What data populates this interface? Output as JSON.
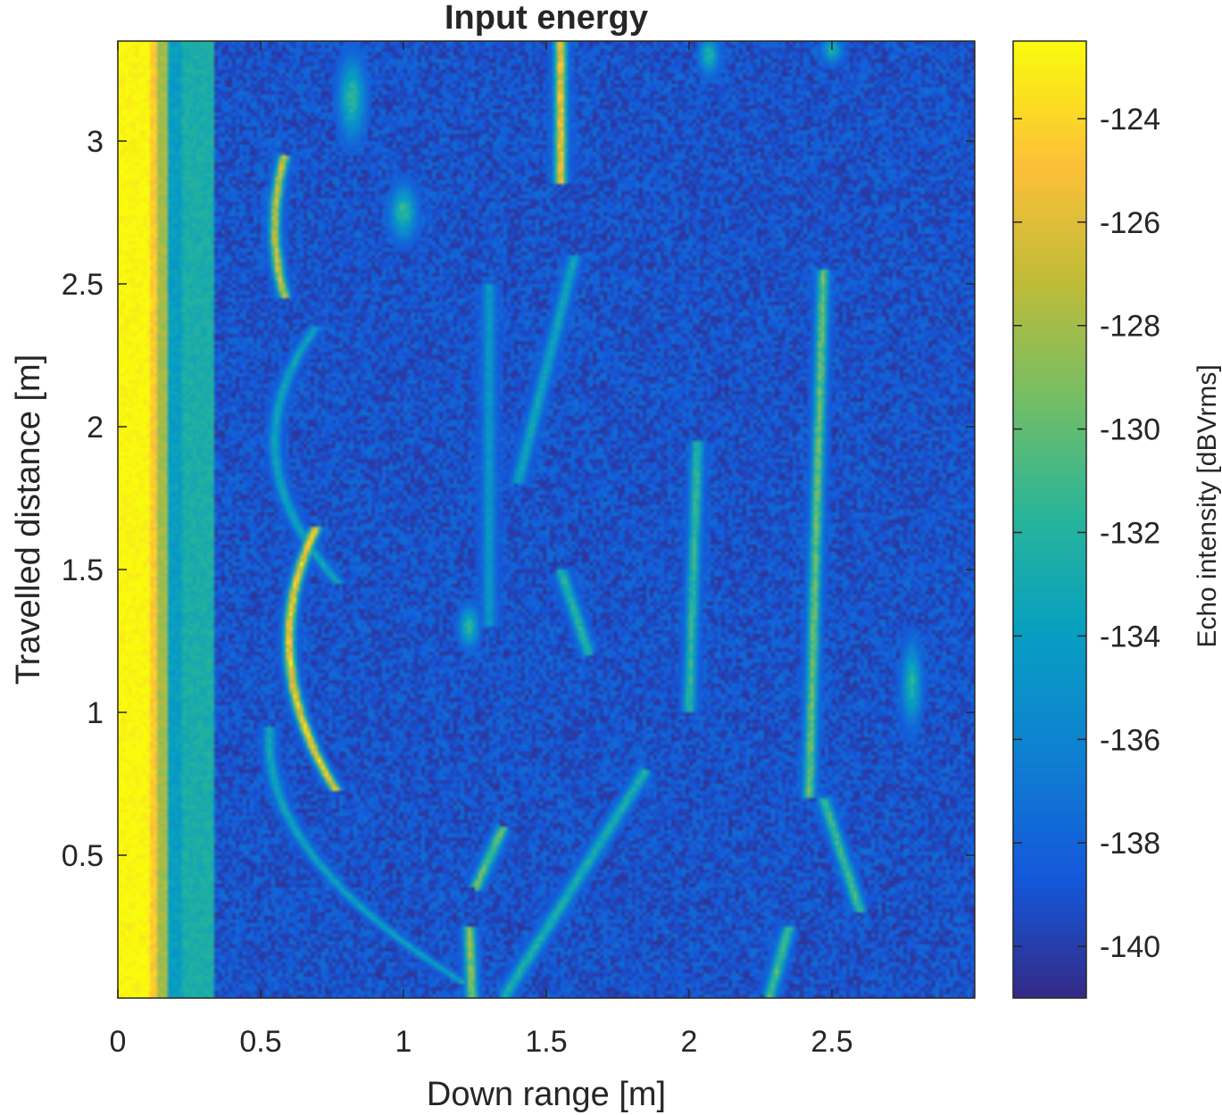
{
  "chart_data": {
    "type": "heatmap",
    "title": "Input energy",
    "xlabel": "Down range [m]",
    "ylabel": "Travelled distance [m]",
    "colorbar_label": "Echo intensity [dBVrms]",
    "xlim": [
      0,
      3.0
    ],
    "ylim": [
      0,
      3.35
    ],
    "x_ticks": [
      0,
      0.5,
      1,
      1.5,
      2,
      2.5
    ],
    "x_tick_labels": [
      "0",
      "0.5",
      "1",
      "1.5",
      "2",
      "2.5"
    ],
    "y_ticks": [
      0.5,
      1,
      1.5,
      2,
      2.5,
      3
    ],
    "y_tick_labels": [
      "0.5",
      "1",
      "1.5",
      "2",
      "2.5",
      "3"
    ],
    "clim": [
      -141,
      -122.5
    ],
    "colorbar_ticks": [
      -140,
      -138,
      -136,
      -134,
      -132,
      -130,
      -128,
      -126,
      -124
    ],
    "colorbar_tick_labels": [
      "-140",
      "-138",
      "-136",
      "-134",
      "-132",
      "-130",
      "-128",
      "-126",
      "-124"
    ],
    "colormap": "parula",
    "background_level": -139,
    "features": [
      {
        "kind": "band",
        "x_from": 0.0,
        "x_to": 0.11,
        "level": -122.5
      },
      {
        "kind": "band",
        "x_from": 0.11,
        "x_to": 0.135,
        "level": -124.5
      },
      {
        "kind": "band",
        "x_from": 0.135,
        "x_to": 0.175,
        "level": -128
      },
      {
        "kind": "band",
        "x_from": 0.175,
        "x_to": 0.22,
        "level": -134
      },
      {
        "kind": "band",
        "x_from": 0.22,
        "x_to": 0.34,
        "level": -132.5
      },
      {
        "kind": "arc",
        "apex_x": 0.6,
        "apex_y": 1.25,
        "a": 0.6,
        "y_from": 0.72,
        "y_to": 1.65,
        "level": -123.5
      },
      {
        "kind": "arc",
        "apex_x": 0.55,
        "apex_y": 2.7,
        "a": 0.55,
        "y_from": 2.45,
        "y_to": 2.95,
        "level": -126
      },
      {
        "kind": "arc",
        "apex_x": 0.55,
        "apex_y": 1.95,
        "a": 0.9,
        "y_from": 1.45,
        "y_to": 2.35,
        "level": -133
      },
      {
        "kind": "arc",
        "apex_x": 0.53,
        "apex_y": 0.9,
        "a": 0.95,
        "y_from": 0.05,
        "y_to": 0.95,
        "level": -133
      },
      {
        "kind": "line",
        "x1": 1.55,
        "y1": 2.85,
        "x2": 1.55,
        "y2": 3.35,
        "level": -124
      },
      {
        "kind": "line",
        "x1": 1.24,
        "y1": 0.0,
        "x2": 1.23,
        "y2": 0.25,
        "level": -128
      },
      {
        "kind": "line",
        "x1": 1.25,
        "y1": 0.38,
        "x2": 1.35,
        "y2": 0.6,
        "level": -129.5
      },
      {
        "kind": "line",
        "x1": 1.35,
        "y1": 0.0,
        "x2": 1.85,
        "y2": 0.8,
        "level": -132
      },
      {
        "kind": "line",
        "x1": 2.03,
        "y1": 1.95,
        "x2": 2.0,
        "y2": 1.0,
        "level": -131
      },
      {
        "kind": "line",
        "x1": 2.47,
        "y1": 2.55,
        "x2": 2.42,
        "y2": 0.7,
        "level": -129
      },
      {
        "kind": "line",
        "x1": 2.47,
        "y1": 0.7,
        "x2": 2.6,
        "y2": 0.3,
        "level": -130.5
      },
      {
        "kind": "line",
        "x1": 2.28,
        "y1": 0.0,
        "x2": 2.35,
        "y2": 0.25,
        "level": -130
      },
      {
        "kind": "line",
        "x1": 1.6,
        "y1": 2.6,
        "x2": 1.4,
        "y2": 1.8,
        "level": -133
      },
      {
        "kind": "line",
        "x1": 1.3,
        "y1": 2.5,
        "x2": 1.3,
        "y2": 1.3,
        "level": -134
      },
      {
        "kind": "line",
        "x1": 1.65,
        "y1": 1.2,
        "x2": 1.55,
        "y2": 1.5,
        "level": -131.5
      },
      {
        "kind": "blob",
        "x": 1.0,
        "y": 2.75,
        "rx": 0.04,
        "ry": 0.08,
        "level": -131
      },
      {
        "kind": "blob",
        "x": 0.82,
        "y": 3.15,
        "rx": 0.04,
        "ry": 0.12,
        "level": -131
      },
      {
        "kind": "blob",
        "x": 1.23,
        "y": 1.3,
        "rx": 0.03,
        "ry": 0.06,
        "level": -131
      },
      {
        "kind": "blob",
        "x": 2.78,
        "y": 1.1,
        "rx": 0.03,
        "ry": 0.12,
        "level": -131.5
      },
      {
        "kind": "blob",
        "x": 2.07,
        "y": 3.3,
        "rx": 0.03,
        "ry": 0.06,
        "level": -132
      },
      {
        "kind": "blob",
        "x": 2.5,
        "y": 3.32,
        "rx": 0.03,
        "ry": 0.04,
        "level": -132
      }
    ]
  }
}
